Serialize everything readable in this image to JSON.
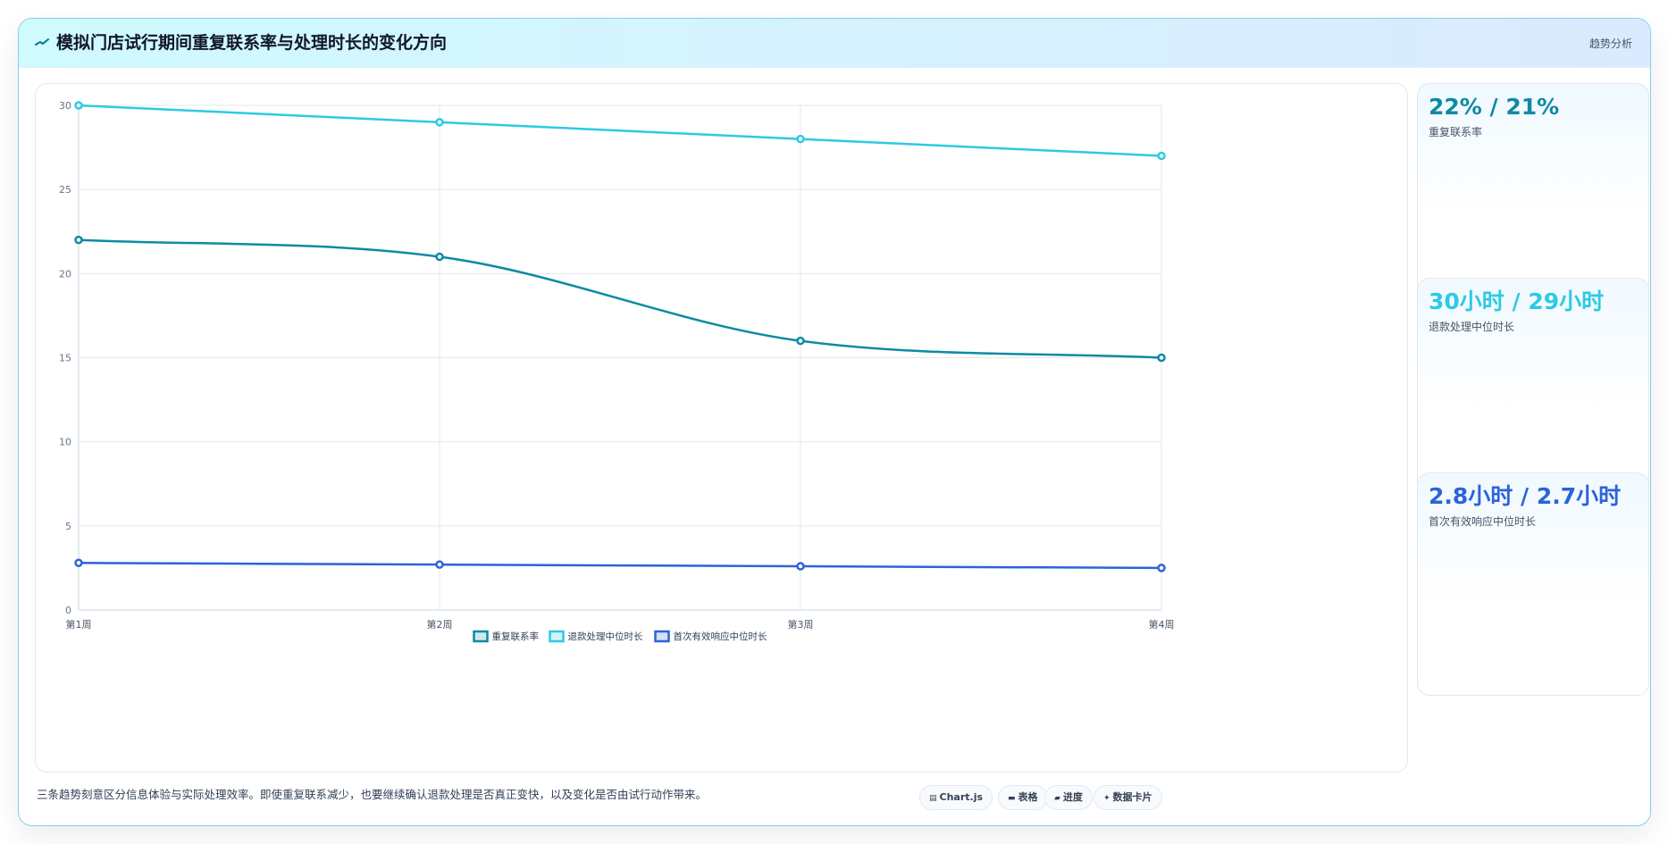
{
  "header": {
    "title": "模拟门店试行期间重复联系率与处理时长的变化方向",
    "tag": "趋势分析"
  },
  "chart_data": {
    "type": "line",
    "categories": [
      "第1周",
      "第2周",
      "第3周",
      "第4周"
    ],
    "series": [
      {
        "name": "重复联系率",
        "values": [
          22,
          21,
          16,
          15
        ],
        "color": "#0e8aa3"
      },
      {
        "name": "退款处理中位时长",
        "values": [
          30,
          29,
          28,
          27
        ],
        "color": "#2dcae3"
      },
      {
        "name": "首次有效响应中位时长",
        "values": [
          2.8,
          2.7,
          2.6,
          2.5
        ],
        "color": "#2b63d9"
      }
    ],
    "y_ticks": [
      "0",
      "5",
      "10",
      "15",
      "20",
      "25",
      "30"
    ],
    "ylim": [
      0,
      30
    ],
    "grid": true,
    "legend_position": "bottom"
  },
  "stats": [
    {
      "value": "22% / 21%",
      "label": "重复联系率",
      "color": "#0e8aa3"
    },
    {
      "value": "30小时 / 29小时",
      "label": "退款处理中位时长",
      "color": "#2dcae3"
    },
    {
      "value": "2.8小时 / 2.7小时",
      "label": "首次有效响应中位时长",
      "color": "#2b63d9"
    }
  ],
  "footer": {
    "note": "三条趋势刻意区分信息体验与实际处理效率。即使重复联系减少，也要继续确认退款处理是否真正变快，以及变化是否由试行动作带来。",
    "chips": [
      {
        "label": "Chart.js",
        "icon": "chart-icon"
      },
      {
        "label": "表格",
        "icon": "table-icon"
      },
      {
        "label": "进度",
        "icon": "progress-icon"
      },
      {
        "label": "数据卡片",
        "icon": "sparkle-icon"
      }
    ]
  }
}
